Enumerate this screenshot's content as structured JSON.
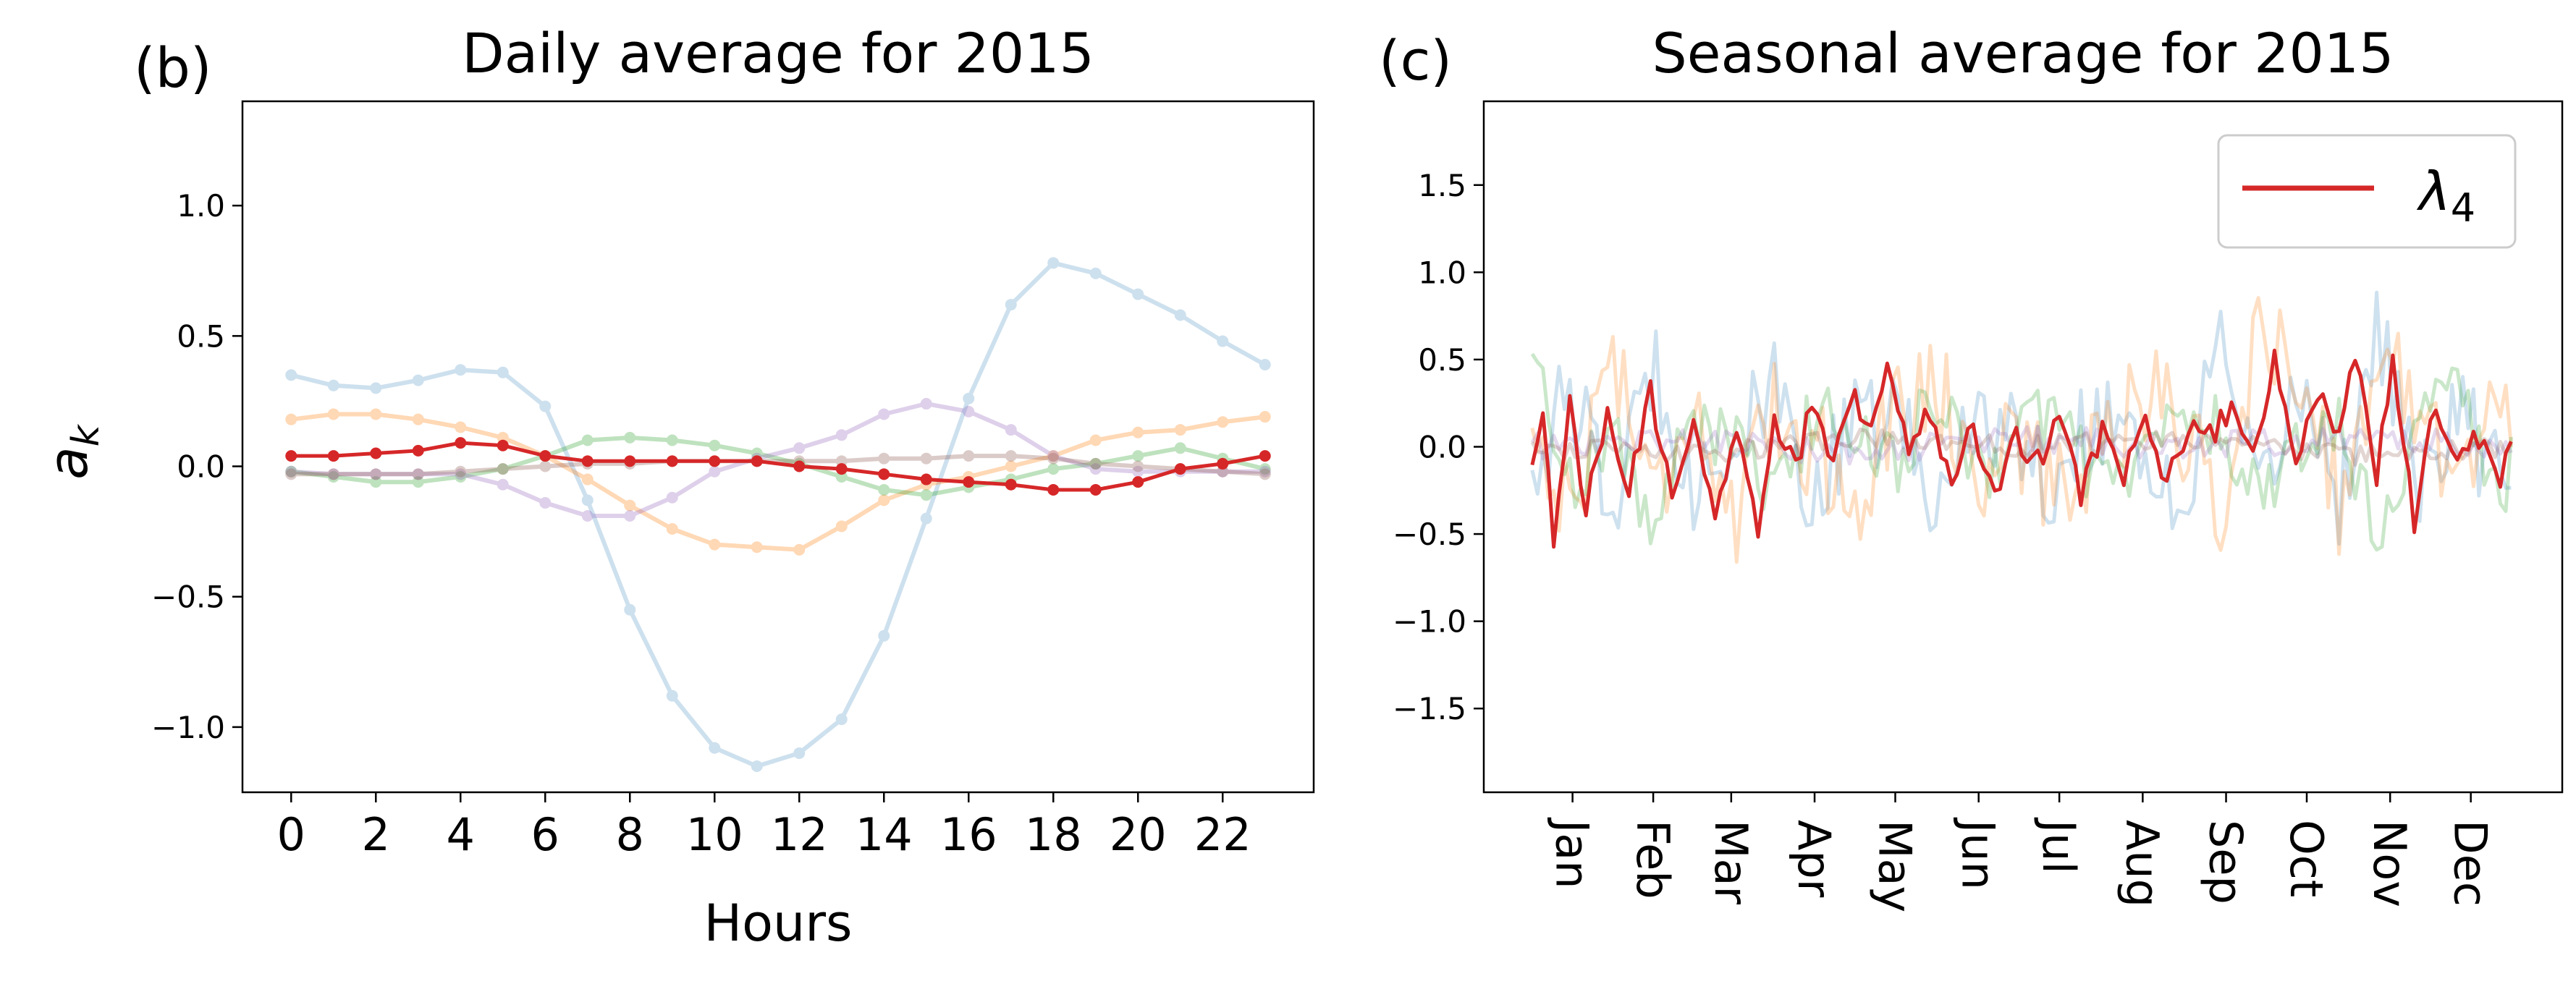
{
  "colors": {
    "blue": "#1f77b4",
    "orange": "#ff7f0e",
    "green": "#2ca02c",
    "purple": "#9467bd",
    "brown": "#8c564b",
    "red": "#d62728"
  },
  "chart_data": [
    {
      "type": "line",
      "panel_label": "(b)",
      "title": "Daily average for 2015",
      "xlabel": "Hours",
      "ylabel_symbol": "a",
      "ylabel_subscript": "k",
      "xlim": [
        -1.15,
        24.15
      ],
      "ylim": [
        -1.25,
        1.4
      ],
      "xticks": [
        0,
        2,
        4,
        6,
        8,
        10,
        12,
        14,
        16,
        18,
        20,
        22
      ],
      "yticks": [
        -1.0,
        -0.5,
        0.0,
        0.5,
        1.0
      ],
      "ytick_labels": [
        "−1.0",
        "−0.5",
        "0.0",
        "0.5",
        "1.0"
      ],
      "x": [
        0,
        1,
        2,
        3,
        4,
        5,
        6,
        7,
        8,
        9,
        10,
        11,
        12,
        13,
        14,
        15,
        16,
        17,
        18,
        19,
        20,
        21,
        22,
        23
      ],
      "series": [
        {
          "name": "blue",
          "color": "#1f77b4",
          "alpha": 0.22,
          "values": [
            0.35,
            0.31,
            0.3,
            0.33,
            0.37,
            0.36,
            0.23,
            -0.13,
            -0.55,
            -0.88,
            -1.08,
            -1.15,
            -1.1,
            -0.97,
            -0.65,
            -0.2,
            0.26,
            0.62,
            0.78,
            0.74,
            0.66,
            0.58,
            0.48,
            0.39
          ]
        },
        {
          "name": "orange",
          "color": "#ff7f0e",
          "alpha": 0.3,
          "values": [
            0.18,
            0.2,
            0.2,
            0.18,
            0.15,
            0.11,
            0.04,
            -0.05,
            -0.15,
            -0.24,
            -0.3,
            -0.31,
            -0.32,
            -0.23,
            -0.13,
            -0.07,
            -0.04,
            0.0,
            0.04,
            0.1,
            0.13,
            0.14,
            0.17,
            0.19
          ]
        },
        {
          "name": "green",
          "color": "#2ca02c",
          "alpha": 0.3,
          "values": [
            -0.02,
            -0.04,
            -0.06,
            -0.06,
            -0.04,
            -0.01,
            0.04,
            0.1,
            0.11,
            0.1,
            0.08,
            0.05,
            0.01,
            -0.04,
            -0.09,
            -0.11,
            -0.08,
            -0.05,
            -0.01,
            0.01,
            0.04,
            0.07,
            0.03,
            -0.01
          ]
        },
        {
          "name": "purple",
          "color": "#9467bd",
          "alpha": 0.3,
          "values": [
            -0.02,
            -0.03,
            -0.03,
            -0.03,
            -0.03,
            -0.07,
            -0.14,
            -0.19,
            -0.19,
            -0.12,
            -0.02,
            0.03,
            0.07,
            0.12,
            0.2,
            0.24,
            0.21,
            0.14,
            0.04,
            -0.01,
            -0.02,
            -0.02,
            -0.02,
            -0.02
          ]
        },
        {
          "name": "brown",
          "color": "#8c564b",
          "alpha": 0.3,
          "values": [
            -0.03,
            -0.03,
            -0.03,
            -0.03,
            -0.02,
            -0.01,
            0.0,
            0.01,
            0.01,
            0.02,
            0.02,
            0.02,
            0.02,
            0.02,
            0.03,
            0.03,
            0.04,
            0.04,
            0.03,
            0.01,
            0.0,
            -0.01,
            -0.02,
            -0.03
          ]
        },
        {
          "name": "red",
          "color": "#d62728",
          "alpha": 1.0,
          "values": [
            0.04,
            0.04,
            0.05,
            0.06,
            0.09,
            0.08,
            0.04,
            0.02,
            0.02,
            0.02,
            0.02,
            0.02,
            0.0,
            -0.01,
            -0.03,
            -0.05,
            -0.06,
            -0.07,
            -0.09,
            -0.09,
            -0.06,
            -0.01,
            0.01,
            0.04
          ]
        }
      ]
    },
    {
      "type": "line",
      "panel_label": "(c)",
      "title": "Seasonal average for 2015",
      "xlim": [
        -18,
        383
      ],
      "ylim": [
        -1.98,
        1.98
      ],
      "yticks": [
        -1.5,
        -1.0,
        -0.5,
        0.0,
        0.5,
        1.0,
        1.5
      ],
      "ytick_labels": [
        "−1.5",
        "−1.0",
        "−0.5",
        "0.0",
        "0.5",
        "1.0",
        "1.5"
      ],
      "month_ticks": [
        15,
        45,
        74,
        105,
        135,
        166,
        196,
        227,
        258,
        288,
        319,
        349
      ],
      "month_labels": [
        "Jan",
        "Feb",
        "Mar",
        "Apr",
        "May",
        "Jun",
        "Jul",
        "Aug",
        "Sep",
        "Oct",
        "Nov",
        "Dec"
      ],
      "legend": {
        "symbol": "λ",
        "subscript": "4",
        "color": "#d62728",
        "position": "upper right"
      },
      "series": [
        {
          "name": "blue",
          "color": "#1f77b4",
          "alpha": 0.22,
          "knots_day": [
            0,
            15,
            30,
            45,
            60,
            75,
            90,
            105,
            120,
            135,
            150,
            165,
            180,
            195,
            210,
            225,
            240,
            255,
            270,
            285,
            300,
            315,
            330,
            345,
            360,
            364
          ],
          "knots_value": [
            -0.1,
            0.3,
            -0.4,
            0.5,
            -0.2,
            0.0,
            0.3,
            -0.3,
            0.1,
            0.2,
            -0.4,
            0.3,
            0.0,
            -0.2,
            0.2,
            0.1,
            -0.5,
            0.6,
            -0.4,
            0.4,
            -0.3,
            0.7,
            -0.3,
            0.2,
            -0.2,
            0.0
          ],
          "noise": 0.3
        },
        {
          "name": "orange",
          "color": "#ff7f0e",
          "alpha": 0.25,
          "knots_day": [
            0,
            15,
            30,
            45,
            60,
            75,
            90,
            105,
            120,
            135,
            150,
            165,
            180,
            195,
            210,
            225,
            240,
            255,
            270,
            285,
            300,
            315,
            330,
            345,
            360,
            364
          ],
          "knots_value": [
            0.1,
            -0.4,
            0.6,
            -0.3,
            0.3,
            -0.5,
            0.2,
            0.0,
            -0.3,
            0.2,
            0.4,
            -0.2,
            0.1,
            -0.3,
            0.0,
            0.3,
            0.2,
            -0.4,
            0.6,
            0.5,
            -0.3,
            0.4,
            0.3,
            -0.2,
            0.4,
            0.0
          ],
          "noise": 0.32
        },
        {
          "name": "green",
          "color": "#2ca02c",
          "alpha": 0.25,
          "knots_day": [
            0,
            15,
            30,
            45,
            60,
            75,
            90,
            105,
            120,
            135,
            150,
            165,
            180,
            195,
            210,
            225,
            240,
            255,
            270,
            285,
            300,
            315,
            330,
            345,
            360,
            364
          ],
          "knots_value": [
            0.5,
            -0.2,
            0.1,
            -0.5,
            0.2,
            0.0,
            -0.3,
            0.2,
            0.1,
            -0.1,
            0.3,
            -0.2,
            0.1,
            0.2,
            -0.2,
            -0.1,
            0.2,
            0.1,
            -0.3,
            0.0,
            0.1,
            -0.5,
            0.2,
            0.3,
            -0.4,
            -0.1
          ],
          "noise": 0.2
        },
        {
          "name": "purple",
          "color": "#9467bd",
          "alpha": 0.25,
          "knots_day": [
            0,
            60,
            120,
            180,
            240,
            300,
            364
          ],
          "knots_value": [
            0.0,
            0.05,
            -0.05,
            0.05,
            0.0,
            0.05,
            0.0
          ],
          "noise": 0.08
        },
        {
          "name": "brown",
          "color": "#8c564b",
          "alpha": 0.25,
          "knots_day": [
            0,
            60,
            120,
            180,
            240,
            300,
            364
          ],
          "knots_value": [
            0.0,
            -0.05,
            0.05,
            0.0,
            0.05,
            -0.05,
            0.0
          ],
          "noise": 0.06
        },
        {
          "name": "red",
          "color": "#d62728",
          "alpha": 1.0,
          "knots_day": [
            0,
            4,
            8,
            14,
            20,
            28,
            36,
            44,
            52,
            60,
            68,
            76,
            84,
            90,
            98,
            104,
            112,
            118,
            126,
            132,
            140,
            148,
            156,
            164,
            172,
            180,
            188,
            196,
            204,
            212,
            220,
            228,
            236,
            244,
            252,
            260,
            268,
            276,
            284,
            292,
            300,
            306,
            314,
            320,
            328,
            336,
            344,
            352,
            360,
            364
          ],
          "knots_value": [
            -0.15,
            0.2,
            -0.55,
            0.25,
            -0.35,
            0.15,
            -0.25,
            0.3,
            -0.3,
            0.2,
            -0.4,
            0.1,
            -0.5,
            0.15,
            -0.1,
            0.25,
            -0.15,
            0.3,
            0.1,
            0.4,
            0.0,
            0.2,
            -0.2,
            0.1,
            -0.25,
            0.05,
            -0.1,
            0.2,
            -0.3,
            0.1,
            -0.15,
            0.15,
            -0.2,
            0.1,
            0.05,
            0.25,
            -0.1,
            0.5,
            -0.05,
            0.3,
            0.05,
            0.5,
            -0.15,
            0.45,
            -0.45,
            0.25,
            -0.1,
            0.05,
            -0.2,
            0.1
          ],
          "noise": 0.08
        }
      ]
    }
  ]
}
